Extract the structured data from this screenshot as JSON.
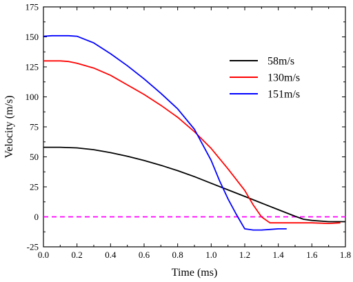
{
  "chart_data": {
    "type": "line",
    "xlabel": "Time (ms)",
    "ylabel": "Velocity (m/s)",
    "xlim": [
      0,
      1.8
    ],
    "ylim": [
      -25,
      175
    ],
    "xticks": [
      "0.0",
      "0.2",
      "0.4",
      "0.6",
      "0.8",
      "1.0",
      "1.2",
      "1.4",
      "1.6",
      "1.8"
    ],
    "yticks": [
      "-25",
      "0",
      "25",
      "50",
      "75",
      "100",
      "125",
      "150",
      "175"
    ],
    "grid": false,
    "legend_position": "upper-right",
    "reference_line": {
      "y": 0,
      "color": "#ff00ff",
      "style": "dashed"
    },
    "series": [
      {
        "name": "58m/s",
        "color": "#000000",
        "x": [
          0,
          0.1,
          0.2,
          0.3,
          0.4,
          0.5,
          0.6,
          0.7,
          0.8,
          0.9,
          1.0,
          1.1,
          1.2,
          1.3,
          1.4,
          1.5,
          1.55,
          1.6,
          1.7,
          1.8
        ],
        "y": [
          58,
          58,
          57.5,
          56,
          53.5,
          50.5,
          47,
          43,
          38.5,
          33.5,
          28,
          22.5,
          17,
          11.5,
          6,
          0.5,
          -2,
          -3,
          -4,
          -4
        ]
      },
      {
        "name": "130m/s",
        "color": "#ff0000",
        "x": [
          0,
          0.05,
          0.1,
          0.15,
          0.2,
          0.3,
          0.4,
          0.5,
          0.6,
          0.7,
          0.8,
          0.9,
          1.0,
          1.1,
          1.2,
          1.25,
          1.3,
          1.35,
          1.4,
          1.5,
          1.6,
          1.7,
          1.77
        ],
        "y": [
          130,
          130,
          130,
          129.5,
          128,
          124,
          118,
          110,
          102,
          93,
          83,
          71,
          57,
          40,
          22,
          10,
          0,
          -5,
          -5,
          -5,
          -5,
          -5.5,
          -5
        ]
      },
      {
        "name": "151m/s",
        "color": "#0000ff",
        "x": [
          0,
          0.05,
          0.1,
          0.15,
          0.2,
          0.3,
          0.4,
          0.5,
          0.6,
          0.7,
          0.8,
          0.9,
          1.0,
          1.05,
          1.1,
          1.15,
          1.2,
          1.25,
          1.3,
          1.35,
          1.4,
          1.45
        ],
        "y": [
          150.5,
          151,
          151,
          151,
          150.5,
          145,
          136,
          126,
          115,
          103,
          90,
          73,
          47,
          30,
          15,
          2,
          -10,
          -11,
          -11,
          -10.5,
          -10,
          -10
        ]
      }
    ]
  }
}
